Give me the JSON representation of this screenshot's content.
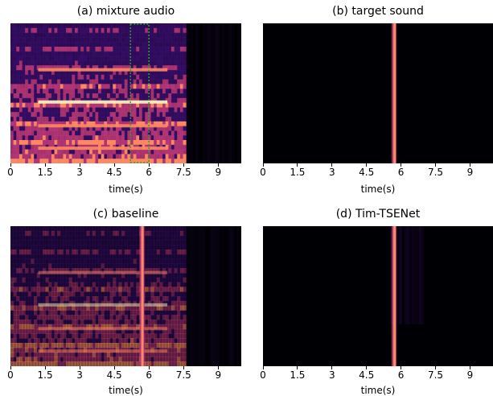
{
  "chart_data": [
    {
      "type": "heatmap",
      "title": "(a) mixture audio",
      "xlabel": "time(s)",
      "ylabel": "",
      "xlim": [
        0,
        10
      ],
      "xticks": [
        0,
        1.5,
        3,
        4.5,
        6,
        7.5,
        9
      ],
      "xtick_labels": [
        "0",
        "1.5",
        "3",
        "4.5",
        "6",
        "7.5",
        "9"
      ],
      "colormap": "magma",
      "active_range": [
        0,
        7.6
      ],
      "highlight_box": {
        "x0": 5.2,
        "x1": 6.0,
        "style": "dotted",
        "color": "#2ca02c"
      }
    },
    {
      "type": "heatmap",
      "title": "(b) target sound",
      "xlabel": "time(s)",
      "ylabel": "",
      "xlim": [
        0,
        10
      ],
      "xticks": [
        0,
        1.5,
        3,
        4.5,
        6,
        7.5,
        9
      ],
      "xtick_labels": [
        "0",
        "1.5",
        "3",
        "4.5",
        "6",
        "7.5",
        "9"
      ],
      "colormap": "magma",
      "event_time": 5.7
    },
    {
      "type": "heatmap",
      "title": "(c) baseline",
      "xlabel": "time(s)",
      "ylabel": "",
      "xlim": [
        0,
        10
      ],
      "xticks": [
        0,
        1.5,
        3,
        4.5,
        6,
        7.5,
        9
      ],
      "xtick_labels": [
        "0",
        "1.5",
        "3",
        "4.5",
        "6",
        "7.5",
        "9"
      ],
      "colormap": "magma",
      "active_range": [
        0,
        7.6
      ],
      "event_time": 5.7
    },
    {
      "type": "heatmap",
      "title": "(d) Tim-TSENet",
      "xlabel": "time(s)",
      "ylabel": "",
      "xlim": [
        0,
        10
      ],
      "xticks": [
        0,
        1.5,
        3,
        4.5,
        6,
        7.5,
        9
      ],
      "xtick_labels": [
        "0",
        "1.5",
        "3",
        "4.5",
        "6",
        "7.5",
        "9"
      ],
      "colormap": "magma",
      "event_time": 5.7,
      "leak_range": [
        5.5,
        7.0
      ]
    }
  ],
  "colors": {
    "background_dark": "#000004",
    "magma_low": "#3b0f70",
    "magma_mid": "#b73779",
    "magma_high": "#fc8961",
    "magma_peak": "#fcfdbf",
    "box": "#2ca02c"
  }
}
